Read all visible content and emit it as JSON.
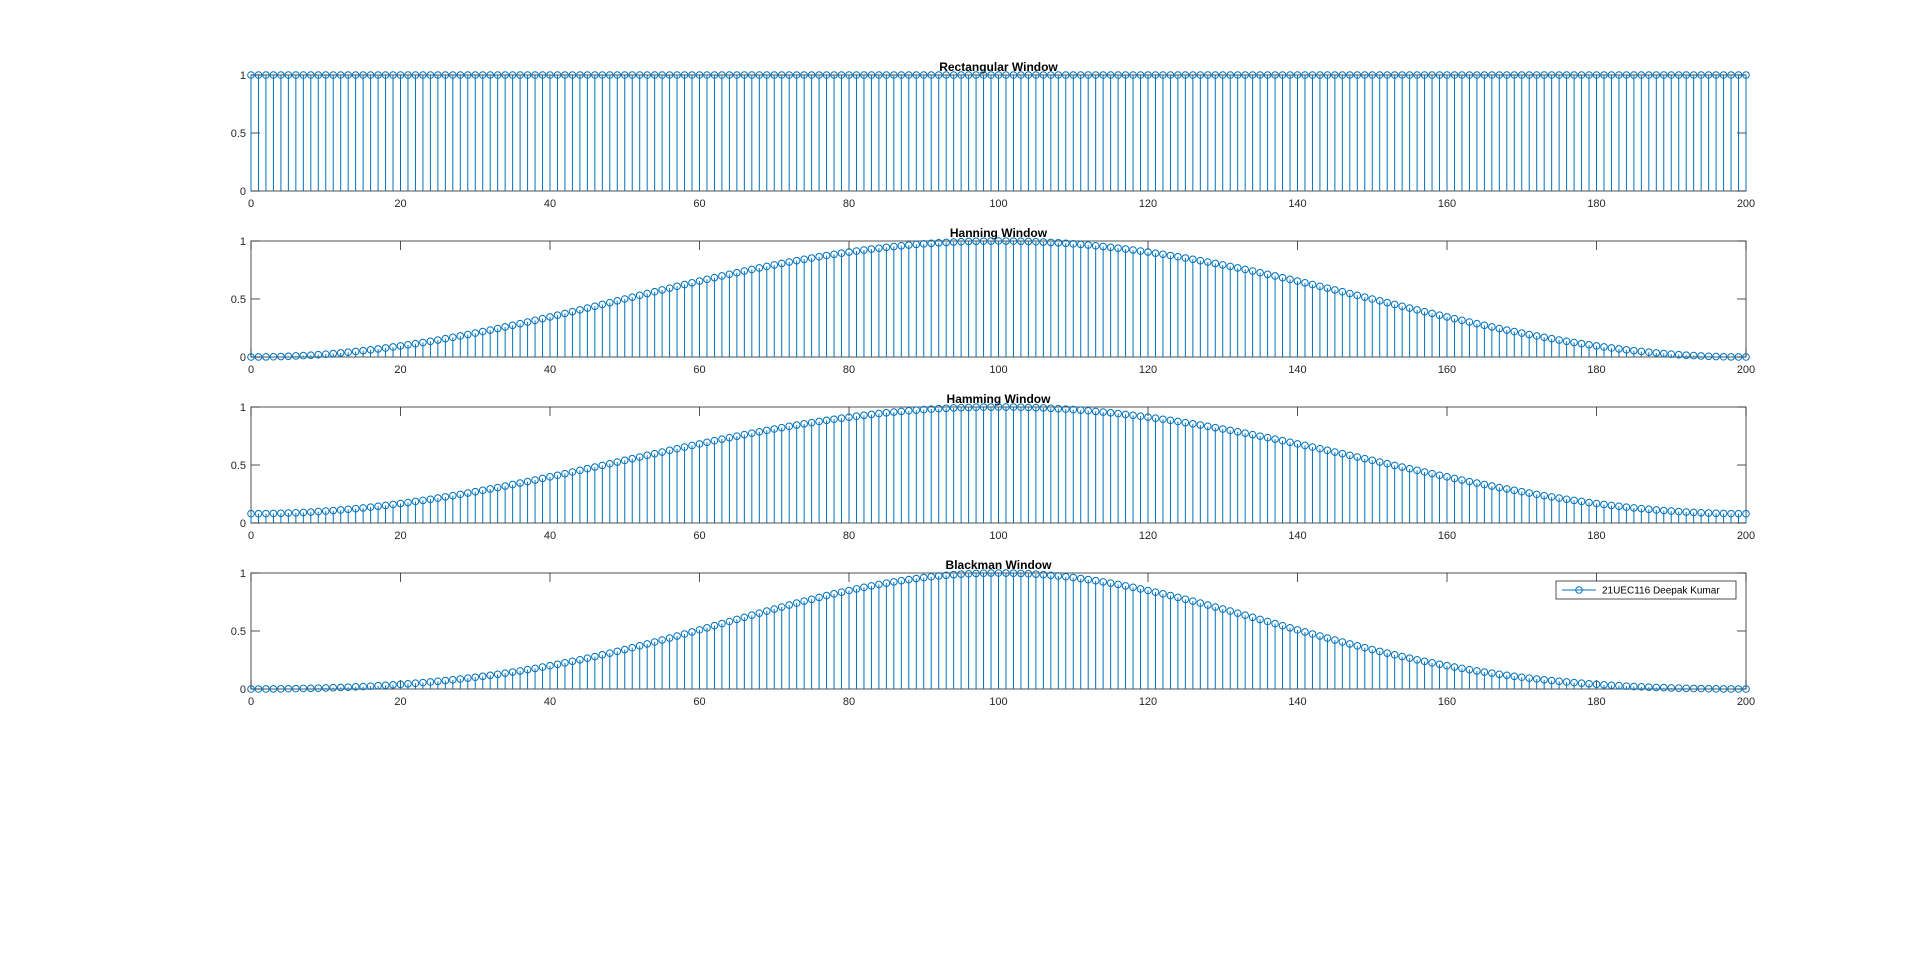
{
  "chart_data": [
    {
      "type": "stem",
      "title": "Rectangular Window",
      "window": "rectangular",
      "N": 201,
      "x": {
        "start": 0,
        "end": 200,
        "step": 1
      },
      "values_formula": "w(n) = 1, n = 0..200",
      "xlim": [
        0,
        200
      ],
      "ylim": [
        0,
        1
      ],
      "xticks": [
        "0",
        "20",
        "40",
        "60",
        "80",
        "100",
        "120",
        "140",
        "160",
        "180",
        "200"
      ],
      "yticks": [
        "0",
        "0.5",
        "1"
      ],
      "grid": false,
      "legend": null
    },
    {
      "type": "stem",
      "title": "Hanning Window",
      "window": "hanning",
      "N": 201,
      "x": {
        "start": 0,
        "end": 200,
        "step": 1
      },
      "values_formula": "w(n) = 0.5 - 0.5*cos(2*pi*n/200), n = 0..200",
      "xlim": [
        0,
        200
      ],
      "ylim": [
        0,
        1
      ],
      "xticks": [
        "0",
        "20",
        "40",
        "60",
        "80",
        "100",
        "120",
        "140",
        "160",
        "180",
        "200"
      ],
      "yticks": [
        "0",
        "0.5",
        "1"
      ],
      "grid": false,
      "legend": null
    },
    {
      "type": "stem",
      "title": "Hamming Window",
      "window": "hamming",
      "N": 201,
      "x": {
        "start": 0,
        "end": 200,
        "step": 1
      },
      "values_formula": "w(n) = 0.54 - 0.46*cos(2*pi*n/200), n = 0..200",
      "xlim": [
        0,
        200
      ],
      "ylim": [
        0,
        1
      ],
      "xticks": [
        "0",
        "20",
        "40",
        "60",
        "80",
        "100",
        "120",
        "140",
        "160",
        "180",
        "200"
      ],
      "yticks": [
        "0",
        "0.5",
        "1"
      ],
      "grid": false,
      "legend": null
    },
    {
      "type": "stem",
      "title": "Blackman Window",
      "window": "blackman",
      "N": 201,
      "x": {
        "start": 0,
        "end": 200,
        "step": 1
      },
      "values_formula": "w(n) = 0.42 - 0.5*cos(2*pi*n/200) + 0.08*cos(4*pi*n/200), n = 0..200",
      "xlim": [
        0,
        200
      ],
      "ylim": [
        0,
        1
      ],
      "xticks": [
        "0",
        "20",
        "40",
        "60",
        "80",
        "100",
        "120",
        "140",
        "160",
        "180",
        "200"
      ],
      "yticks": [
        "0",
        "0.5",
        "1"
      ],
      "grid": false,
      "legend": {
        "entries": [
          "21UEC116 Deepak Kumar"
        ],
        "position": "top-right"
      }
    }
  ],
  "colors": {
    "stem": "#0072BD",
    "axes": "#262626",
    "background": "#ffffff",
    "legend_border": "#262626"
  },
  "marker": "circle-open"
}
